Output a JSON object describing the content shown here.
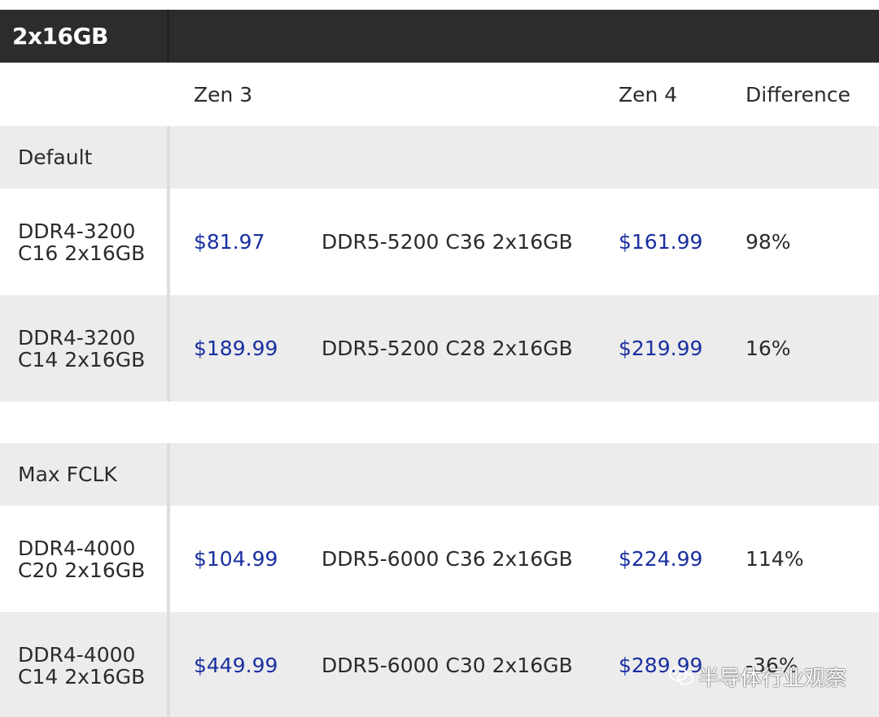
{
  "header": {
    "title": "2x16GB"
  },
  "columns": {
    "zen3": "Zen 3",
    "zen4": "Zen 4",
    "difference": "Difference"
  },
  "sections": [
    {
      "label": "Default",
      "rows": [
        {
          "zen3_memory": "DDR4-3200\nC16 2x16GB",
          "zen3_price": "$81.97",
          "zen4_memory": "DDR5-5200 C36 2x16GB",
          "zen4_price": "$161.99",
          "difference": "98%"
        },
        {
          "zen3_memory": "DDR4-3200\nC14 2x16GB",
          "zen3_price": "$189.99",
          "zen4_memory": "DDR5-5200 C28 2x16GB",
          "zen4_price": "$219.99",
          "difference": "16%"
        }
      ]
    },
    {
      "label": "Max FCLK",
      "rows": [
        {
          "zen3_memory": "DDR4-4000\nC20 2x16GB",
          "zen3_price": "$104.99",
          "zen4_memory": "DDR5-6000 C36 2x16GB",
          "zen4_price": "$224.99",
          "difference": "114%"
        },
        {
          "zen3_memory": "DDR4-4000\nC14 2x16GB",
          "zen3_price": "$449.99",
          "zen4_memory": "DDR5-6000 C30 2x16GB",
          "zen4_price": "$289.99",
          "difference": "-36%"
        }
      ]
    }
  ],
  "watermark": {
    "text": "半导体行业观察",
    "icon": "wechat-logo-icon"
  },
  "colors": {
    "header_bg": "#2c2c2c",
    "price": "#1a2fa0",
    "row_shade": "#ececec"
  }
}
